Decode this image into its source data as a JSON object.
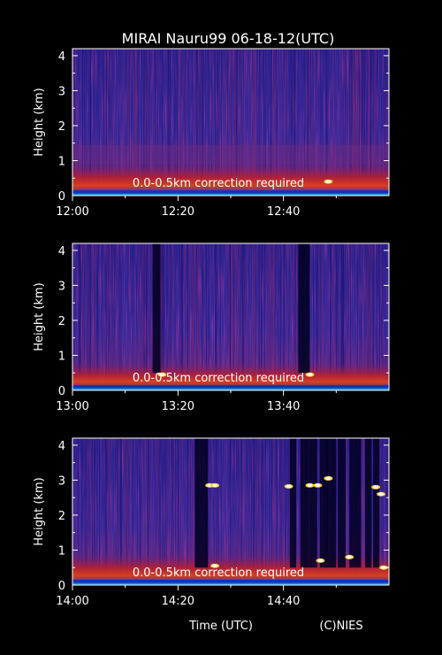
{
  "title": "MIRAI Nauru99 06-18-12(UTC)",
  "x_axis_label": "Time (UTC)",
  "credit": "(C)NIES",
  "chart_data": [
    {
      "type": "heatmap",
      "ylabel": "Height (km)",
      "yticks": [
        0,
        1,
        2,
        3,
        4
      ],
      "ylim": [
        0,
        4.2
      ],
      "xticks": [
        "12:00",
        "12:20",
        "12:40"
      ],
      "xlim_minutes": [
        0,
        60
      ],
      "note": "0.0-0.5km correction required",
      "boundary_layer_top_km": 0.5,
      "clouds": [
        {
          "t": 48.5,
          "h": 0.4
        }
      ]
    },
    {
      "type": "heatmap",
      "ylabel": "Height (km)",
      "yticks": [
        0,
        1,
        2,
        3,
        4
      ],
      "ylim": [
        0,
        4.2
      ],
      "xticks": [
        "13:00",
        "13:20",
        "13:40"
      ],
      "xlim_minutes": [
        0,
        60
      ],
      "note": "0.0-0.5km correction required",
      "boundary_layer_top_km": 0.35,
      "clouds": [
        {
          "t": 17,
          "h": 0.45
        },
        {
          "t": 45,
          "h": 0.45
        }
      ]
    },
    {
      "type": "heatmap",
      "ylabel": "Height (km)",
      "yticks": [
        0,
        1,
        2,
        3,
        4
      ],
      "ylim": [
        0,
        4.2
      ],
      "xticks": [
        "14:00",
        "14:20",
        "14:40"
      ],
      "xlim_minutes": [
        0,
        60
      ],
      "note": "0.0-0.5km correction required",
      "boundary_layer_top_km": 0.45,
      "clouds": [
        {
          "t": 26,
          "h": 2.85
        },
        {
          "t": 27,
          "h": 2.85
        },
        {
          "t": 27,
          "h": 0.55
        },
        {
          "t": 41,
          "h": 2.82
        },
        {
          "t": 45,
          "h": 2.85
        },
        {
          "t": 46.5,
          "h": 2.85
        },
        {
          "t": 48.5,
          "h": 3.05
        },
        {
          "t": 47,
          "h": 0.7
        },
        {
          "t": 52.5,
          "h": 0.8
        },
        {
          "t": 57.5,
          "h": 2.8
        },
        {
          "t": 58.5,
          "h": 2.6
        },
        {
          "t": 59,
          "h": 0.5
        }
      ]
    }
  ]
}
